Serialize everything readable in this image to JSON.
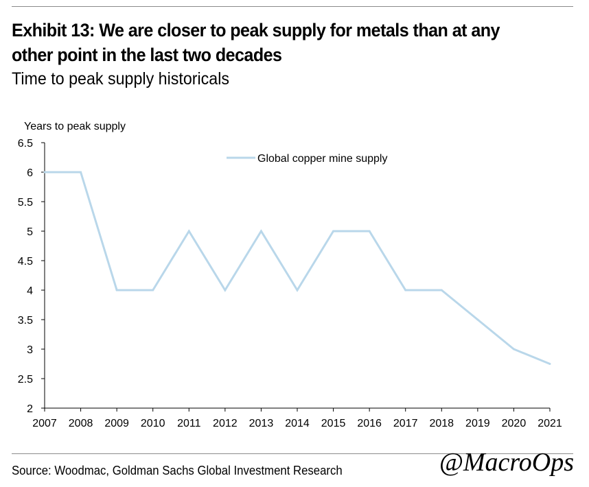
{
  "header": {
    "title_line1": "Exhibit 13: We are closer to peak supply for metals than at any",
    "title_line2": "other point in the last two decades",
    "subtitle": "Time to peak supply historicals"
  },
  "footer": {
    "source": "Source: Woodmac, Goldman Sachs Global Investment Research",
    "watermark": "@MacroOps"
  },
  "chart_data": {
    "type": "line",
    "ylabel": "Years to peak supply",
    "xlabel": "",
    "categories": [
      "2007",
      "2008",
      "2009",
      "2010",
      "2011",
      "2012",
      "2013",
      "2014",
      "2015",
      "2016",
      "2017",
      "2018",
      "2019",
      "2020",
      "2021"
    ],
    "series": [
      {
        "name": "Global copper mine supply",
        "color": "#b9d7ea",
        "values": [
          6,
          6,
          4,
          4,
          5,
          4,
          5,
          4,
          5,
          5,
          4,
          4,
          3.5,
          3,
          2.75
        ]
      }
    ],
    "ylim": [
      2,
      6.5
    ],
    "yticks": [
      "2",
      "2.5",
      "3",
      "3.5",
      "4",
      "4.5",
      "5",
      "5.5",
      "6",
      "6.5"
    ],
    "grid": false,
    "legend_position": "top-center"
  }
}
